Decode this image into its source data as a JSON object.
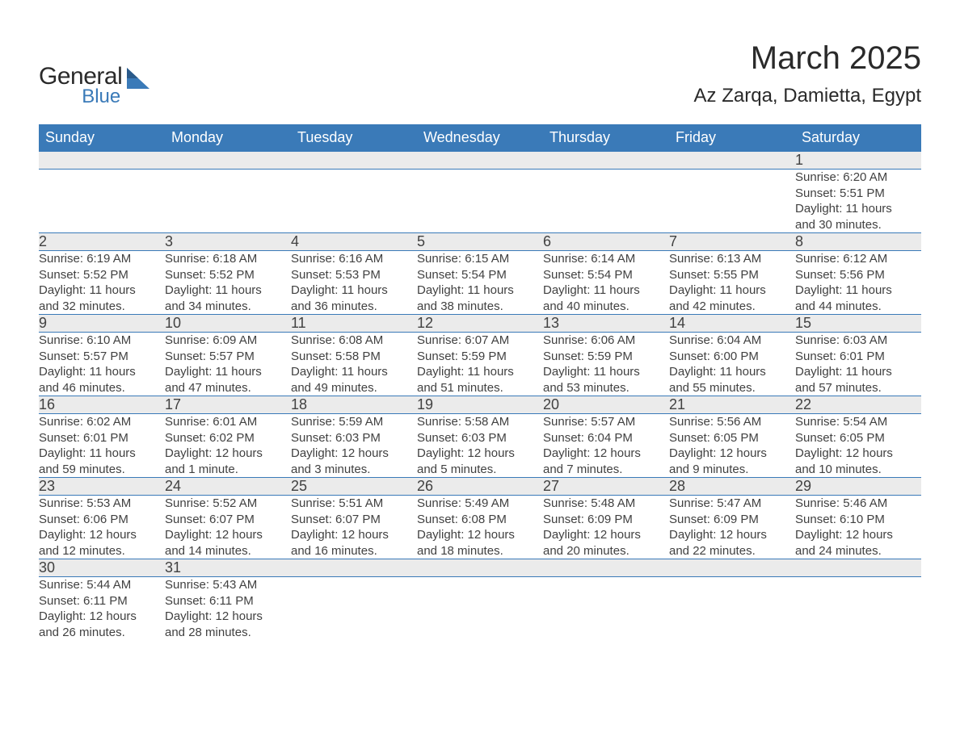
{
  "logo": {
    "word1": "General",
    "word2": "Blue"
  },
  "title": "March 2025",
  "location": "Az Zarqa, Damietta, Egypt",
  "colors": {
    "header_bg": "#3a7ab8",
    "header_text": "#ffffff",
    "daynum_bg": "#ebebeb",
    "text": "#414141",
    "rule": "#3a7ab8",
    "page_bg": "#ffffff",
    "logo_blue": "#3a7ab8",
    "logo_dark": "#2a2a2a"
  },
  "typography": {
    "title_fontsize": 40,
    "location_fontsize": 24,
    "header_fontsize": 18,
    "daynum_fontsize": 18,
    "body_fontsize": 15
  },
  "weekday_headers": [
    "Sunday",
    "Monday",
    "Tuesday",
    "Wednesday",
    "Thursday",
    "Friday",
    "Saturday"
  ],
  "weeks": [
    [
      null,
      null,
      null,
      null,
      null,
      null,
      {
        "day": "1",
        "sunrise": "Sunrise: 6:20 AM",
        "sunset": "Sunset: 5:51 PM",
        "day1": "Daylight: 11 hours",
        "day2": "and 30 minutes."
      }
    ],
    [
      {
        "day": "2",
        "sunrise": "Sunrise: 6:19 AM",
        "sunset": "Sunset: 5:52 PM",
        "day1": "Daylight: 11 hours",
        "day2": "and 32 minutes."
      },
      {
        "day": "3",
        "sunrise": "Sunrise: 6:18 AM",
        "sunset": "Sunset: 5:52 PM",
        "day1": "Daylight: 11 hours",
        "day2": "and 34 minutes."
      },
      {
        "day": "4",
        "sunrise": "Sunrise: 6:16 AM",
        "sunset": "Sunset: 5:53 PM",
        "day1": "Daylight: 11 hours",
        "day2": "and 36 minutes."
      },
      {
        "day": "5",
        "sunrise": "Sunrise: 6:15 AM",
        "sunset": "Sunset: 5:54 PM",
        "day1": "Daylight: 11 hours",
        "day2": "and 38 minutes."
      },
      {
        "day": "6",
        "sunrise": "Sunrise: 6:14 AM",
        "sunset": "Sunset: 5:54 PM",
        "day1": "Daylight: 11 hours",
        "day2": "and 40 minutes."
      },
      {
        "day": "7",
        "sunrise": "Sunrise: 6:13 AM",
        "sunset": "Sunset: 5:55 PM",
        "day1": "Daylight: 11 hours",
        "day2": "and 42 minutes."
      },
      {
        "day": "8",
        "sunrise": "Sunrise: 6:12 AM",
        "sunset": "Sunset: 5:56 PM",
        "day1": "Daylight: 11 hours",
        "day2": "and 44 minutes."
      }
    ],
    [
      {
        "day": "9",
        "sunrise": "Sunrise: 6:10 AM",
        "sunset": "Sunset: 5:57 PM",
        "day1": "Daylight: 11 hours",
        "day2": "and 46 minutes."
      },
      {
        "day": "10",
        "sunrise": "Sunrise: 6:09 AM",
        "sunset": "Sunset: 5:57 PM",
        "day1": "Daylight: 11 hours",
        "day2": "and 47 minutes."
      },
      {
        "day": "11",
        "sunrise": "Sunrise: 6:08 AM",
        "sunset": "Sunset: 5:58 PM",
        "day1": "Daylight: 11 hours",
        "day2": "and 49 minutes."
      },
      {
        "day": "12",
        "sunrise": "Sunrise: 6:07 AM",
        "sunset": "Sunset: 5:59 PM",
        "day1": "Daylight: 11 hours",
        "day2": "and 51 minutes."
      },
      {
        "day": "13",
        "sunrise": "Sunrise: 6:06 AM",
        "sunset": "Sunset: 5:59 PM",
        "day1": "Daylight: 11 hours",
        "day2": "and 53 minutes."
      },
      {
        "day": "14",
        "sunrise": "Sunrise: 6:04 AM",
        "sunset": "Sunset: 6:00 PM",
        "day1": "Daylight: 11 hours",
        "day2": "and 55 minutes."
      },
      {
        "day": "15",
        "sunrise": "Sunrise: 6:03 AM",
        "sunset": "Sunset: 6:01 PM",
        "day1": "Daylight: 11 hours",
        "day2": "and 57 minutes."
      }
    ],
    [
      {
        "day": "16",
        "sunrise": "Sunrise: 6:02 AM",
        "sunset": "Sunset: 6:01 PM",
        "day1": "Daylight: 11 hours",
        "day2": "and 59 minutes."
      },
      {
        "day": "17",
        "sunrise": "Sunrise: 6:01 AM",
        "sunset": "Sunset: 6:02 PM",
        "day1": "Daylight: 12 hours",
        "day2": "and 1 minute."
      },
      {
        "day": "18",
        "sunrise": "Sunrise: 5:59 AM",
        "sunset": "Sunset: 6:03 PM",
        "day1": "Daylight: 12 hours",
        "day2": "and 3 minutes."
      },
      {
        "day": "19",
        "sunrise": "Sunrise: 5:58 AM",
        "sunset": "Sunset: 6:03 PM",
        "day1": "Daylight: 12 hours",
        "day2": "and 5 minutes."
      },
      {
        "day": "20",
        "sunrise": "Sunrise: 5:57 AM",
        "sunset": "Sunset: 6:04 PM",
        "day1": "Daylight: 12 hours",
        "day2": "and 7 minutes."
      },
      {
        "day": "21",
        "sunrise": "Sunrise: 5:56 AM",
        "sunset": "Sunset: 6:05 PM",
        "day1": "Daylight: 12 hours",
        "day2": "and 9 minutes."
      },
      {
        "day": "22",
        "sunrise": "Sunrise: 5:54 AM",
        "sunset": "Sunset: 6:05 PM",
        "day1": "Daylight: 12 hours",
        "day2": "and 10 minutes."
      }
    ],
    [
      {
        "day": "23",
        "sunrise": "Sunrise: 5:53 AM",
        "sunset": "Sunset: 6:06 PM",
        "day1": "Daylight: 12 hours",
        "day2": "and 12 minutes."
      },
      {
        "day": "24",
        "sunrise": "Sunrise: 5:52 AM",
        "sunset": "Sunset: 6:07 PM",
        "day1": "Daylight: 12 hours",
        "day2": "and 14 minutes."
      },
      {
        "day": "25",
        "sunrise": "Sunrise: 5:51 AM",
        "sunset": "Sunset: 6:07 PM",
        "day1": "Daylight: 12 hours",
        "day2": "and 16 minutes."
      },
      {
        "day": "26",
        "sunrise": "Sunrise: 5:49 AM",
        "sunset": "Sunset: 6:08 PM",
        "day1": "Daylight: 12 hours",
        "day2": "and 18 minutes."
      },
      {
        "day": "27",
        "sunrise": "Sunrise: 5:48 AM",
        "sunset": "Sunset: 6:09 PM",
        "day1": "Daylight: 12 hours",
        "day2": "and 20 minutes."
      },
      {
        "day": "28",
        "sunrise": "Sunrise: 5:47 AM",
        "sunset": "Sunset: 6:09 PM",
        "day1": "Daylight: 12 hours",
        "day2": "and 22 minutes."
      },
      {
        "day": "29",
        "sunrise": "Sunrise: 5:46 AM",
        "sunset": "Sunset: 6:10 PM",
        "day1": "Daylight: 12 hours",
        "day2": "and 24 minutes."
      }
    ],
    [
      {
        "day": "30",
        "sunrise": "Sunrise: 5:44 AM",
        "sunset": "Sunset: 6:11 PM",
        "day1": "Daylight: 12 hours",
        "day2": "and 26 minutes."
      },
      {
        "day": "31",
        "sunrise": "Sunrise: 5:43 AM",
        "sunset": "Sunset: 6:11 PM",
        "day1": "Daylight: 12 hours",
        "day2": "and 28 minutes."
      },
      null,
      null,
      null,
      null,
      null
    ]
  ]
}
